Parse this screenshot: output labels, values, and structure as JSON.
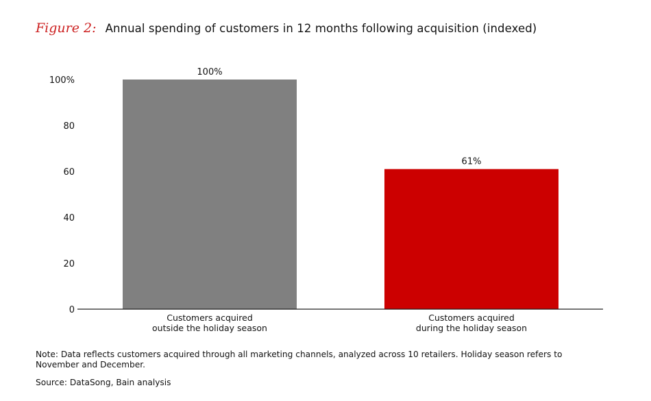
{
  "figure": {
    "label": "Figure 2:",
    "title": "Annual spending of customers in 12 months following acquisition (indexed)"
  },
  "chart_data": {
    "type": "bar",
    "categories": [
      [
        "Customers acquired",
        "outside the holiday season"
      ],
      [
        "Customers acquired",
        "during the holiday season"
      ]
    ],
    "values": [
      100,
      61
    ],
    "data_labels": [
      "100%",
      "61%"
    ],
    "colors": [
      "#808080",
      "#cc0000"
    ],
    "ylim": [
      0,
      100
    ],
    "yticks": [
      0,
      20,
      40,
      60,
      80,
      100
    ],
    "ytick_labels": [
      "0",
      "20",
      "40",
      "60",
      "80",
      "100%"
    ],
    "grid": false
  },
  "note": "Note: Data reflects customers acquired through all marketing channels, analyzed across 10 retailers. Holiday season refers to November and December.",
  "source": "Source: DataSong, Bain analysis"
}
